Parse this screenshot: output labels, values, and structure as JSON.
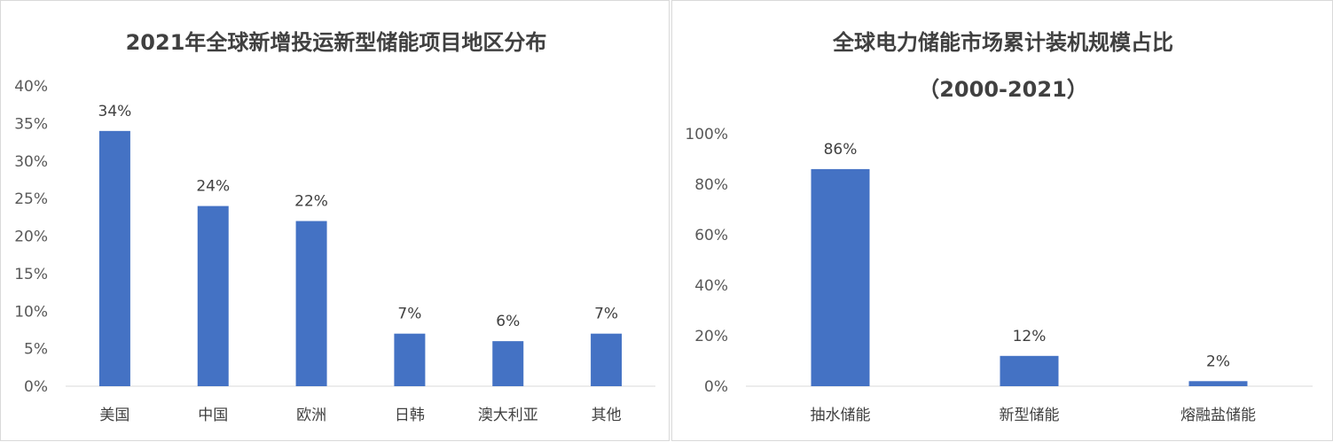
{
  "chart_data": [
    {
      "type": "bar",
      "title": "2021年全球新增投运新型储能项目地区分布",
      "categories": [
        "美国",
        "中国",
        "欧洲",
        "日韩",
        "澳大利亚",
        "其他"
      ],
      "values": [
        34,
        24,
        22,
        7,
        6,
        7
      ],
      "data_labels": [
        "34%",
        "24%",
        "22%",
        "7%",
        "6%",
        "7%"
      ],
      "y_ticks": [
        "0%",
        "5%",
        "10%",
        "15%",
        "20%",
        "25%",
        "30%",
        "35%",
        "40%"
      ],
      "ylim": [
        0,
        40
      ],
      "unit": "%",
      "grid": false,
      "bar_color": "#4472C4"
    },
    {
      "type": "bar",
      "title": "全球电力储能市场累计装机规模占比",
      "subtitle": "（2000-2021）",
      "categories": [
        "抽水储能",
        "新型储能",
        "熔融盐储能"
      ],
      "values": [
        86,
        12,
        2
      ],
      "data_labels": [
        "86%",
        "12%",
        "2%"
      ],
      "y_ticks": [
        "0%",
        "20%",
        "40%",
        "60%",
        "80%",
        "100%"
      ],
      "ylim": [
        0,
        100
      ],
      "unit": "%",
      "grid": false,
      "bar_color": "#4472C4"
    }
  ]
}
